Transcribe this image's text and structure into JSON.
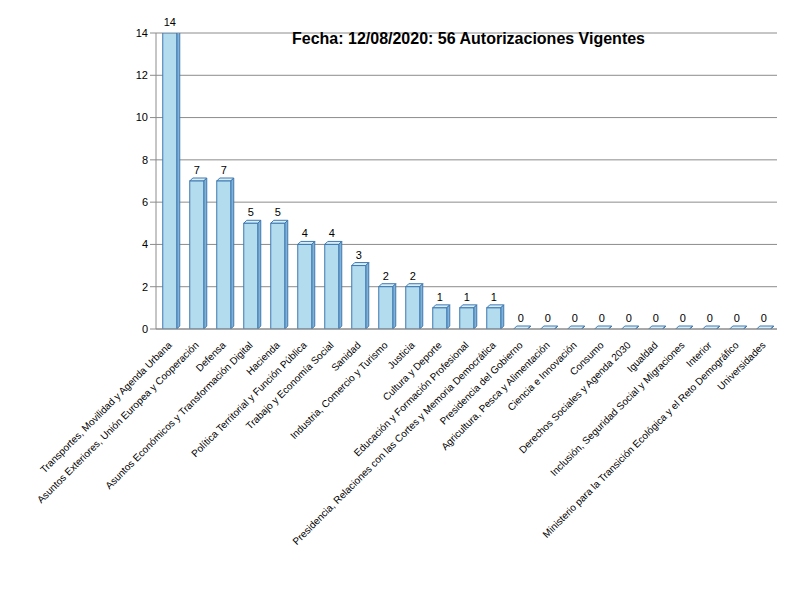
{
  "chart_data": {
    "type": "bar",
    "title": "Fecha: 12/08/2020: 56 Autorizaciones Vigentes",
    "categories": [
      "Transportes, Movilidad y Agenda Urbana",
      "Asuntos Exteriores, Unión Europea y Cooperación",
      "Defensa",
      "Asuntos Económicos y Transformación Digital",
      "Hacienda",
      "Política Territorial y Función Pública",
      "Trabajo y Economía Social",
      "Sanidad",
      "Industria, Comercio y Turismo",
      "Justicia",
      "Cultura y Deporte",
      "Educación y Formación Profesional",
      "Presidencia, Relaciones con las Cortes y Memoria Democrática",
      "Presidencia del Gobierno",
      "Agricultura, Pesca y Alimentación",
      "Ciencia e Innovación",
      "Consumo",
      "Derechos Sociales y Agenda 2030",
      "Igualdad",
      "Inclusión, Seguridad Social y Migraciones",
      "Interior",
      "Ministerio para la Transición Ecológica y el Reto Demográfico",
      "Universidades"
    ],
    "values": [
      14,
      7,
      7,
      5,
      5,
      4,
      4,
      3,
      2,
      2,
      1,
      1,
      1,
      0,
      0,
      0,
      0,
      0,
      0,
      0,
      0,
      0,
      0
    ],
    "color": "#b3dcef",
    "ylim": [
      0,
      14
    ],
    "yticks": [
      0,
      2,
      4,
      6,
      8,
      10,
      12,
      14
    ],
    "grid": true,
    "data_labels": true
  }
}
